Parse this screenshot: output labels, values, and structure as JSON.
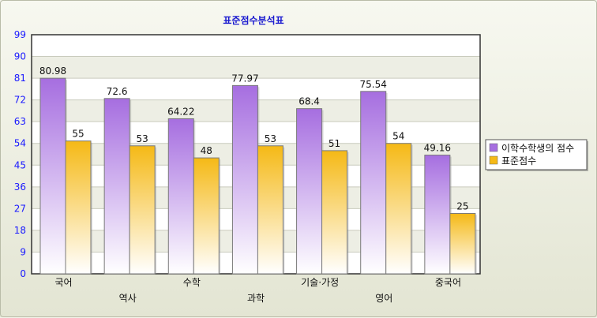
{
  "chart_data": {
    "type": "bar",
    "title": "표준점수분석표",
    "categories": [
      "국어",
      "역사",
      "수학",
      "과학",
      "기술·가정",
      "영어",
      "중국어"
    ],
    "series": [
      {
        "name": "이학수학생의 점수",
        "values": [
          80.98,
          72.6,
          64.22,
          77.97,
          68.4,
          75.54,
          49.16
        ],
        "color": "#a66ee0"
      },
      {
        "name": "표준점수",
        "values": [
          55,
          53,
          48,
          53,
          51,
          54,
          25
        ],
        "color": "#f5b916"
      }
    ],
    "value_labels": [
      [
        "80.98",
        "72.6",
        "64.22",
        "77.97",
        "68.4",
        "75.54",
        "49.16"
      ],
      [
        "55",
        "53",
        "48",
        "53",
        "51",
        "54",
        "25"
      ]
    ],
    "yticks": [
      "0",
      "9",
      "18",
      "27",
      "36",
      "45",
      "54",
      "63",
      "72",
      "81",
      "90",
      "99"
    ],
    "ylim": [
      0,
      99
    ],
    "grid": true,
    "legend_position": "right"
  }
}
